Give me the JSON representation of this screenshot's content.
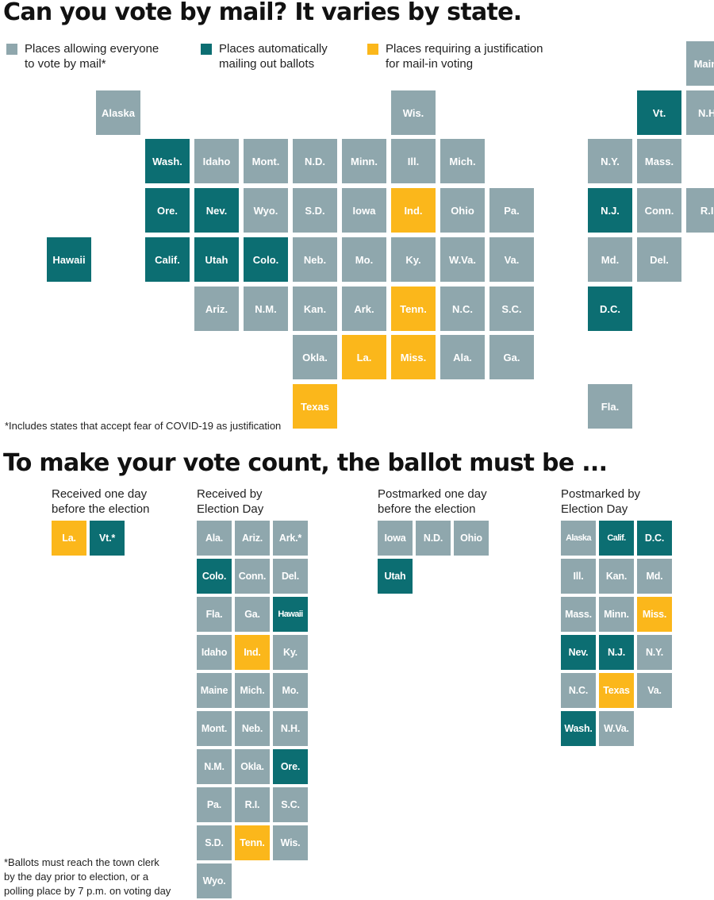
{
  "colors": {
    "all": "#8fa7ad",
    "auto": "#0c6e72",
    "justify": "#fbb71b"
  },
  "map_title": "Can you vote by mail? It varies by state.",
  "legend": [
    {
      "key": "all",
      "label": "Places allowing everyone\nto vote by mail*"
    },
    {
      "key": "auto",
      "label": "Places automatically\nmailing out ballots"
    },
    {
      "key": "justify",
      "label": "Places requiring a justification\nfor mail-in voting"
    }
  ],
  "map_tiles": [
    {
      "label": "Maine",
      "row": 0,
      "col": 13,
      "cat": "all"
    },
    {
      "label": "Alaska",
      "row": 1,
      "col": 1,
      "cat": "all"
    },
    {
      "label": "Wis.",
      "row": 1,
      "col": 7,
      "cat": "all"
    },
    {
      "label": "Vt.",
      "row": 1,
      "col": 12,
      "cat": "auto"
    },
    {
      "label": "N.H.",
      "row": 1,
      "col": 13,
      "cat": "all"
    },
    {
      "label": "Wash.",
      "row": 2,
      "col": 2,
      "cat": "auto"
    },
    {
      "label": "Idaho",
      "row": 2,
      "col": 3,
      "cat": "all"
    },
    {
      "label": "Mont.",
      "row": 2,
      "col": 4,
      "cat": "all"
    },
    {
      "label": "N.D.",
      "row": 2,
      "col": 5,
      "cat": "all"
    },
    {
      "label": "Minn.",
      "row": 2,
      "col": 6,
      "cat": "all"
    },
    {
      "label": "Ill.",
      "row": 2,
      "col": 7,
      "cat": "all"
    },
    {
      "label": "Mich.",
      "row": 2,
      "col": 8,
      "cat": "all"
    },
    {
      "label": "N.Y.",
      "row": 2,
      "col": 11,
      "cat": "all"
    },
    {
      "label": "Mass.",
      "row": 2,
      "col": 12,
      "cat": "all"
    },
    {
      "label": "Ore.",
      "row": 3,
      "col": 2,
      "cat": "auto"
    },
    {
      "label": "Nev.",
      "row": 3,
      "col": 3,
      "cat": "auto"
    },
    {
      "label": "Wyo.",
      "row": 3,
      "col": 4,
      "cat": "all"
    },
    {
      "label": "S.D.",
      "row": 3,
      "col": 5,
      "cat": "all"
    },
    {
      "label": "Iowa",
      "row": 3,
      "col": 6,
      "cat": "all"
    },
    {
      "label": "Ind.",
      "row": 3,
      "col": 7,
      "cat": "justify"
    },
    {
      "label": "Ohio",
      "row": 3,
      "col": 8,
      "cat": "all"
    },
    {
      "label": "Pa.",
      "row": 3,
      "col": 9,
      "cat": "all"
    },
    {
      "label": "N.J.",
      "row": 3,
      "col": 11,
      "cat": "auto"
    },
    {
      "label": "Conn.",
      "row": 3,
      "col": 12,
      "cat": "all"
    },
    {
      "label": "R.I.",
      "row": 3,
      "col": 13,
      "cat": "all"
    },
    {
      "label": "Hawaii",
      "row": 4,
      "col": 0,
      "cat": "auto"
    },
    {
      "label": "Calif.",
      "row": 4,
      "col": 2,
      "cat": "auto"
    },
    {
      "label": "Utah",
      "row": 4,
      "col": 3,
      "cat": "auto"
    },
    {
      "label": "Colo.",
      "row": 4,
      "col": 4,
      "cat": "auto"
    },
    {
      "label": "Neb.",
      "row": 4,
      "col": 5,
      "cat": "all"
    },
    {
      "label": "Mo.",
      "row": 4,
      "col": 6,
      "cat": "all"
    },
    {
      "label": "Ky.",
      "row": 4,
      "col": 7,
      "cat": "all"
    },
    {
      "label": "W.Va.",
      "row": 4,
      "col": 8,
      "cat": "all"
    },
    {
      "label": "Va.",
      "row": 4,
      "col": 9,
      "cat": "all"
    },
    {
      "label": "Md.",
      "row": 4,
      "col": 11,
      "cat": "all"
    },
    {
      "label": "Del.",
      "row": 4,
      "col": 12,
      "cat": "all"
    },
    {
      "label": "Ariz.",
      "row": 5,
      "col": 3,
      "cat": "all"
    },
    {
      "label": "N.M.",
      "row": 5,
      "col": 4,
      "cat": "all"
    },
    {
      "label": "Kan.",
      "row": 5,
      "col": 5,
      "cat": "all"
    },
    {
      "label": "Ark.",
      "row": 5,
      "col": 6,
      "cat": "all"
    },
    {
      "label": "Tenn.",
      "row": 5,
      "col": 7,
      "cat": "justify"
    },
    {
      "label": "N.C.",
      "row": 5,
      "col": 8,
      "cat": "all"
    },
    {
      "label": "S.C.",
      "row": 5,
      "col": 9,
      "cat": "all"
    },
    {
      "label": "D.C.",
      "row": 5,
      "col": 11,
      "cat": "auto"
    },
    {
      "label": "Okla.",
      "row": 6,
      "col": 5,
      "cat": "all"
    },
    {
      "label": "La.",
      "row": 6,
      "col": 6,
      "cat": "justify"
    },
    {
      "label": "Miss.",
      "row": 6,
      "col": 7,
      "cat": "justify"
    },
    {
      "label": "Ala.",
      "row": 6,
      "col": 8,
      "cat": "all"
    },
    {
      "label": "Ga.",
      "row": 6,
      "col": 9,
      "cat": "all"
    },
    {
      "label": "Texas",
      "row": 7,
      "col": 5,
      "cat": "justify"
    },
    {
      "label": "Fla.",
      "row": 7,
      "col": 11,
      "cat": "all"
    }
  ],
  "map_footnote": "*Includes states that accept fear of COVID-19 as justification",
  "deadline_title": "To make your vote count, the ballot must be ...",
  "groups": [
    {
      "header": "Received one day\nbefore the election",
      "cols": 2,
      "items": [
        {
          "label": "La.",
          "cat": "justify"
        },
        {
          "label": "Vt.*",
          "cat": "auto"
        }
      ]
    },
    {
      "header": "Received by\nElection Day",
      "cols": 3,
      "items": [
        {
          "label": "Ala.",
          "cat": "all"
        },
        {
          "label": "Ariz.",
          "cat": "all"
        },
        {
          "label": "Ark.*",
          "cat": "all"
        },
        {
          "label": "Colo.",
          "cat": "auto"
        },
        {
          "label": "Conn.",
          "cat": "all"
        },
        {
          "label": "Del.",
          "cat": "all"
        },
        {
          "label": "Fla.",
          "cat": "all"
        },
        {
          "label": "Ga.",
          "cat": "all"
        },
        {
          "label": "Hawaii",
          "cat": "auto"
        },
        {
          "label": "Idaho",
          "cat": "all"
        },
        {
          "label": "Ind.",
          "cat": "justify"
        },
        {
          "label": "Ky.",
          "cat": "all"
        },
        {
          "label": "Maine",
          "cat": "all"
        },
        {
          "label": "Mich.",
          "cat": "all"
        },
        {
          "label": "Mo.",
          "cat": "all"
        },
        {
          "label": "Mont.",
          "cat": "all"
        },
        {
          "label": "Neb.",
          "cat": "all"
        },
        {
          "label": "N.H.",
          "cat": "all"
        },
        {
          "label": "N.M.",
          "cat": "all"
        },
        {
          "label": "Okla.",
          "cat": "all"
        },
        {
          "label": "Ore.",
          "cat": "auto"
        },
        {
          "label": "Pa.",
          "cat": "all"
        },
        {
          "label": "R.I.",
          "cat": "all"
        },
        {
          "label": "S.C.",
          "cat": "all"
        },
        {
          "label": "S.D.",
          "cat": "all"
        },
        {
          "label": "Tenn.",
          "cat": "justify"
        },
        {
          "label": "Wis.",
          "cat": "all"
        },
        {
          "label": "Wyo.",
          "cat": "all"
        }
      ]
    },
    {
      "header": "Postmarked one day\nbefore the election",
      "cols": 3,
      "items": [
        {
          "label": "Iowa",
          "cat": "all"
        },
        {
          "label": "N.D.",
          "cat": "all"
        },
        {
          "label": "Ohio",
          "cat": "all"
        },
        {
          "label": "Utah",
          "cat": "auto"
        }
      ]
    },
    {
      "header": "Postmarked by\nElection Day",
      "cols": 3,
      "items": [
        {
          "label": "Alaska",
          "cat": "all"
        },
        {
          "label": "Calif.",
          "cat": "auto"
        },
        {
          "label": "D.C.",
          "cat": "auto"
        },
        {
          "label": "Ill.",
          "cat": "all"
        },
        {
          "label": "Kan.",
          "cat": "all"
        },
        {
          "label": "Md.",
          "cat": "all"
        },
        {
          "label": "Mass.",
          "cat": "all"
        },
        {
          "label": "Minn.",
          "cat": "all"
        },
        {
          "label": "Miss.",
          "cat": "justify"
        },
        {
          "label": "Nev.",
          "cat": "auto"
        },
        {
          "label": "N.J.",
          "cat": "auto"
        },
        {
          "label": "N.Y.",
          "cat": "all"
        },
        {
          "label": "N.C.",
          "cat": "all"
        },
        {
          "label": "Texas",
          "cat": "justify"
        },
        {
          "label": "Va.",
          "cat": "all"
        },
        {
          "label": "Wash.",
          "cat": "auto"
        },
        {
          "label": "W.Va.",
          "cat": "all"
        }
      ]
    }
  ],
  "deadline_footnote": "*Ballots must reach the town clerk\nby the day prior to election, or a\npolling place by 7 p.m. on voting day"
}
